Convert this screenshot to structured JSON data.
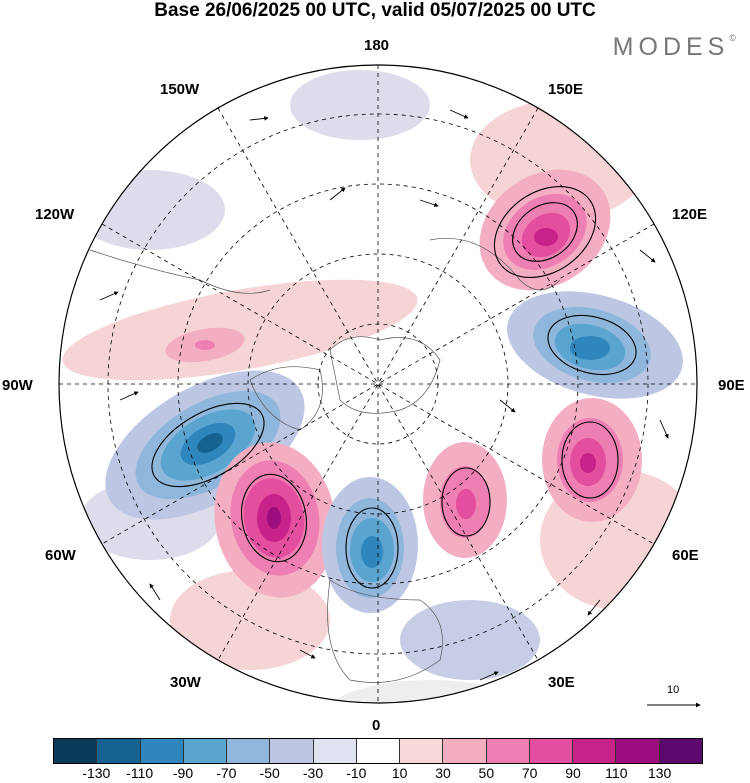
{
  "title": "Base 26/06/2025 00 UTC, valid 05/07/2025 00 UTC",
  "brand": "MODES",
  "brand_mark": "©",
  "longitude_labels": {
    "n180": "180",
    "w150": "150W",
    "e150": "150E",
    "w120": "120W",
    "e120": "120E",
    "w90": "90W",
    "e90": "90E",
    "w60": "60W",
    "e60": "60E",
    "w30": "30W",
    "e30": "30E",
    "s0": "0"
  },
  "reference_vector_label": "10",
  "colorbar": {
    "colors": [
      "#0b3a5b",
      "#15618f",
      "#2f86bd",
      "#5aa4d0",
      "#8fb7dc",
      "#bdc7e4",
      "#e1e2ef",
      "#ffffff",
      "#f8d9d9",
      "#f4aec2",
      "#ee7fb3",
      "#e44e9e",
      "#c7228a",
      "#9c0d7e",
      "#5c086f"
    ],
    "tick_labels": [
      "-130",
      "-110",
      "-90",
      "-70",
      "-50",
      "-30",
      "-10",
      "10",
      "30",
      "50",
      "70",
      "90",
      "110",
      "130"
    ]
  },
  "anomaly_centers": [
    {
      "sign": "positive",
      "level": 90
    },
    {
      "sign": "negative",
      "level": -90
    },
    {
      "sign": "positive",
      "level": 90
    },
    {
      "sign": "negative",
      "level": -110
    },
    {
      "sign": "positive",
      "level": 110
    },
    {
      "sign": "negative",
      "level": -90
    },
    {
      "sign": "positive",
      "level": 70
    },
    {
      "sign": "negative",
      "level": -50
    }
  ]
}
